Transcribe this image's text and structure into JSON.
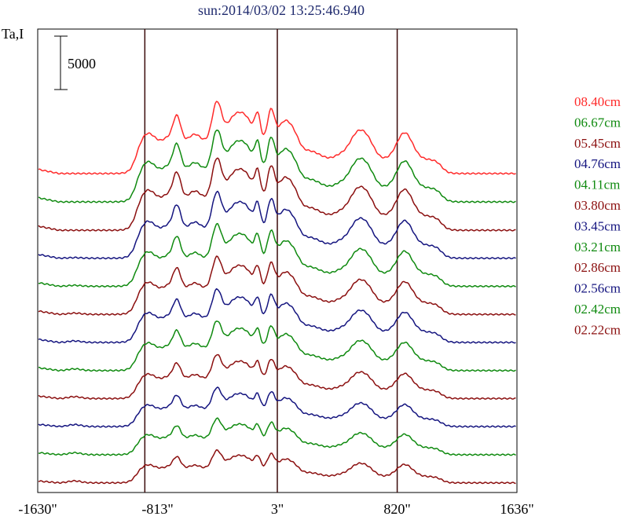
{
  "chart_data": {
    "type": "line",
    "title": "sun:2014/03/02 13:25:46.940",
    "ylabel": "Ta,I",
    "scale_bar_label": "5000",
    "scale_bar_value": 5000,
    "x_ticks": [
      "-1630\"",
      "-813\"",
      "3\"",
      "820\"",
      "1636\""
    ],
    "x_tick_values": [
      -1630,
      -813,
      3,
      820,
      1636
    ],
    "xlim": [
      -1630,
      1636
    ],
    "vertical_markers": [
      -900,
      3,
      820
    ],
    "colors": {
      "red": "#ff2a2a",
      "green": "#0f8a0f",
      "darkred": "#8b0f0f",
      "blue": "#14147f"
    },
    "series": [
      {
        "name": "08.40cm",
        "color": "#ff2a2a",
        "offset": 11,
        "a": 1.0
      },
      {
        "name": "06.67cm",
        "color": "#0f8a0f",
        "offset": 10,
        "a": 1.0
      },
      {
        "name": "05.45cm",
        "color": "#8b0f0f",
        "offset": 9,
        "a": 1.0
      },
      {
        "name": "04.76cm",
        "color": "#14147f",
        "offset": 8,
        "a": 0.92
      },
      {
        "name": "04.11cm",
        "color": "#0f8a0f",
        "offset": 7,
        "a": 0.86
      },
      {
        "name": "03.80cm",
        "color": "#8b0f0f",
        "offset": 6,
        "a": 0.8
      },
      {
        "name": "03.45cm",
        "color": "#14147f",
        "offset": 5,
        "a": 0.74
      },
      {
        "name": "03.21cm",
        "color": "#0f8a0f",
        "offset": 4,
        "a": 0.69
      },
      {
        "name": "02.86cm",
        "color": "#8b0f0f",
        "offset": 3,
        "a": 0.61
      },
      {
        "name": "02.56cm",
        "color": "#14147f",
        "offset": 2,
        "a": 0.54
      },
      {
        "name": "02.42cm",
        "color": "#0f8a0f",
        "offset": 1,
        "a": 0.5
      },
      {
        "name": "02.22cm",
        "color": "#8b0f0f",
        "offset": 0,
        "a": 0.45
      }
    ]
  }
}
